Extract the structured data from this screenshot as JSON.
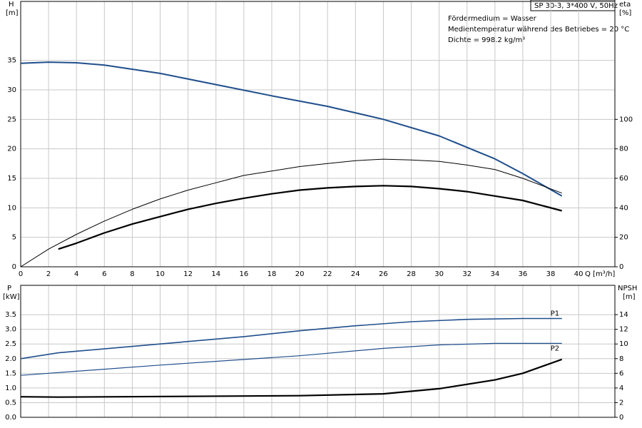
{
  "chart_data": [
    {
      "type": "line",
      "info_box": "SP 30-3, 3*400 V, 50Hz",
      "info_lines": [
        "Fördermedium = Wasser",
        "Medientemperatur während des Betriebes = 20 °C",
        "Dichte = 998.2 kg/m³"
      ],
      "x_label": "Q [m³/h]",
      "y_label": "H",
      "y_unit": "[m]",
      "y2_label": "eta",
      "y2_unit": "[%]",
      "xlim": [
        0,
        42.6
      ],
      "xticks": [
        0,
        2,
        4,
        6,
        8,
        10,
        12,
        14,
        16,
        18,
        20,
        22,
        24,
        26,
        28,
        30,
        32,
        34,
        36,
        38,
        40
      ],
      "ylim": [
        0,
        45
      ],
      "yticks": [
        0,
        5,
        10,
        15,
        20,
        25,
        30,
        35
      ],
      "y2lim": [
        0,
        180
      ],
      "y2ticks": [
        0,
        20,
        40,
        60,
        80,
        100
      ],
      "grid": true,
      "show_xtick_labels": true,
      "series": [
        {
          "color": "#1f4e8c",
          "width": 2,
          "axis": "y",
          "x": [
            0,
            2,
            4,
            6,
            10,
            14,
            18,
            22,
            26,
            30,
            34,
            36,
            38.8
          ],
          "values": [
            34.5,
            34.7,
            34.6,
            34.2,
            32.8,
            30.9,
            29.0,
            27.2,
            25.0,
            22.2,
            18.3,
            15.8,
            12.0
          ]
        },
        {
          "color": "#000000",
          "width": 1,
          "axis": "y2",
          "x": [
            0,
            2,
            4,
            6,
            8,
            10,
            12,
            14,
            16,
            18,
            20,
            22,
            24,
            26,
            28,
            30,
            32,
            34,
            36,
            38.8
          ],
          "values": [
            0,
            12,
            22,
            31,
            39,
            46,
            52,
            57,
            62,
            65,
            68,
            70,
            72,
            73,
            72.5,
            71.5,
            69,
            66,
            60,
            50
          ]
        },
        {
          "color": "#000000",
          "width": 2.2,
          "axis": "y2",
          "x": [
            2.7,
            4,
            6,
            8,
            10,
            12,
            14,
            16,
            18,
            20,
            22,
            24,
            26,
            28,
            30,
            32,
            34,
            36,
            38.8
          ],
          "values": [
            12,
            16,
            23,
            29,
            34,
            39,
            43,
            46.5,
            49.5,
            52,
            53.5,
            54.5,
            55,
            54.5,
            53,
            51,
            48,
            45,
            38
          ]
        }
      ]
    },
    {
      "type": "line",
      "y_label": "P",
      "y_unit": "[kW]",
      "y2_label": "NPSH",
      "y2_unit": "[m]",
      "xlim": [
        0,
        42.6
      ],
      "xticks": [
        0,
        2,
        4,
        6,
        8,
        10,
        12,
        14,
        16,
        18,
        20,
        22,
        24,
        26,
        28,
        30,
        32,
        34,
        36,
        38,
        40
      ],
      "ylim": [
        0,
        4.5
      ],
      "yticks": [
        {
          "value": 0,
          "label": "0.0"
        },
        0.5,
        {
          "value": 1,
          "label": "1.0"
        },
        1.5,
        {
          "value": 2,
          "label": "2.0"
        },
        2.5,
        {
          "value": 3,
          "label": "3.0"
        },
        3.5
      ],
      "y2lim": [
        0,
        18
      ],
      "y2ticks": [
        0,
        2,
        4,
        6,
        8,
        10,
        12,
        14
      ],
      "grid": true,
      "show_xtick_labels": false,
      "series": [
        {
          "name": "P1",
          "color": "#1f4e8c",
          "width": 1.6,
          "axis": "y",
          "label_side": "above",
          "x": [
            0,
            2.7,
            10,
            16,
            20,
            24,
            28,
            32,
            36,
            38.8
          ],
          "values": [
            2.0,
            2.2,
            2.5,
            2.75,
            2.95,
            3.12,
            3.26,
            3.34,
            3.37,
            3.37
          ]
        },
        {
          "name": "P2",
          "color": "#1f4e8c",
          "width": 1.2,
          "axis": "y",
          "label_side": "below",
          "x": [
            0,
            10,
            20,
            26,
            30,
            34,
            38.8
          ],
          "values": [
            1.43,
            1.78,
            2.1,
            2.35,
            2.47,
            2.52,
            2.52
          ]
        },
        {
          "color": "#000000",
          "width": 2.2,
          "axis": "y2",
          "x": [
            0,
            2.7,
            20,
            26,
            30,
            34,
            36,
            38.8
          ],
          "values": [
            2.8,
            2.75,
            2.95,
            3.2,
            3.9,
            5.1,
            6.0,
            7.9
          ]
        }
      ]
    }
  ]
}
